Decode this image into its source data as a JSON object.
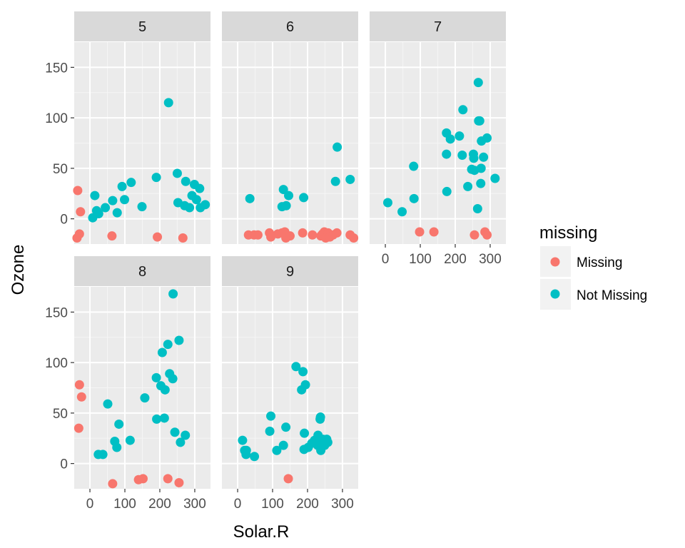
{
  "chart_data": {
    "type": "scatter",
    "facet_variable": "Month",
    "facets": [
      {
        "label": "5",
        "points": [
          {
            "x": -35,
            "y": 28,
            "g": "Missing"
          },
          {
            "x": -27,
            "y": 7,
            "g": "Missing"
          },
          {
            "x": -30,
            "y": -15,
            "g": "Missing"
          },
          {
            "x": -37,
            "y": -19,
            "g": "Missing"
          },
          {
            "x": 63,
            "y": -17,
            "g": "Missing"
          },
          {
            "x": 193,
            "y": -18,
            "g": "Missing"
          },
          {
            "x": 266,
            "y": -19,
            "g": "Missing"
          },
          {
            "x": 8,
            "y": 1,
            "g": "Not Missing"
          },
          {
            "x": 14,
            "y": 23,
            "g": "Not Missing"
          },
          {
            "x": 19,
            "y": 8,
            "g": "Not Missing"
          },
          {
            "x": 25,
            "y": 5,
            "g": "Not Missing"
          },
          {
            "x": 44,
            "y": 11,
            "g": "Not Missing"
          },
          {
            "x": 65,
            "y": 18,
            "g": "Not Missing"
          },
          {
            "x": 78,
            "y": 6,
            "g": "Not Missing"
          },
          {
            "x": 92,
            "y": 32,
            "g": "Not Missing"
          },
          {
            "x": 99,
            "y": 19,
            "g": "Not Missing"
          },
          {
            "x": 118,
            "y": 36,
            "g": "Not Missing"
          },
          {
            "x": 149,
            "y": 12,
            "g": "Not Missing"
          },
          {
            "x": 190,
            "y": 41,
            "g": "Not Missing"
          },
          {
            "x": 225,
            "y": 115,
            "g": "Not Missing"
          },
          {
            "x": 250,
            "y": 45,
            "g": "Not Missing"
          },
          {
            "x": 252,
            "y": 16,
            "g": "Not Missing"
          },
          {
            "x": 274,
            "y": 37,
            "g": "Not Missing"
          },
          {
            "x": 271,
            "y": 13,
            "g": "Not Missing"
          },
          {
            "x": 285,
            "y": 11,
            "g": "Not Missing"
          },
          {
            "x": 292,
            "y": 23,
            "g": "Not Missing"
          },
          {
            "x": 299,
            "y": 34,
            "g": "Not Missing"
          },
          {
            "x": 305,
            "y": 19,
            "g": "Not Missing"
          },
          {
            "x": 314,
            "y": 30,
            "g": "Not Missing"
          },
          {
            "x": 316,
            "y": 11,
            "g": "Not Missing"
          },
          {
            "x": 330,
            "y": 14,
            "g": "Not Missing"
          }
        ]
      },
      {
        "label": "6",
        "points": [
          {
            "x": 31,
            "y": -16,
            "g": "Missing"
          },
          {
            "x": 47,
            "y": -16,
            "g": "Missing"
          },
          {
            "x": 58,
            "y": -16,
            "g": "Missing"
          },
          {
            "x": 91,
            "y": -14,
            "g": "Missing"
          },
          {
            "x": 95,
            "y": -18,
            "g": "Missing"
          },
          {
            "x": 115,
            "y": -15,
            "g": "Missing"
          },
          {
            "x": 127,
            "y": -14,
            "g": "Missing"
          },
          {
            "x": 135,
            "y": -13,
            "g": "Missing"
          },
          {
            "x": 138,
            "y": -19,
            "g": "Missing"
          },
          {
            "x": 150,
            "y": -17,
            "g": "Missing"
          },
          {
            "x": 186,
            "y": -14,
            "g": "Missing"
          },
          {
            "x": 214,
            "y": -16,
            "g": "Missing"
          },
          {
            "x": 238,
            "y": -17,
            "g": "Missing"
          },
          {
            "x": 243,
            "y": -15,
            "g": "Missing"
          },
          {
            "x": 248,
            "y": -13,
            "g": "Missing"
          },
          {
            "x": 252,
            "y": -19,
            "g": "Missing"
          },
          {
            "x": 259,
            "y": -14,
            "g": "Missing"
          },
          {
            "x": 264,
            "y": -18,
            "g": "Missing"
          },
          {
            "x": 273,
            "y": -16,
            "g": "Missing"
          },
          {
            "x": 284,
            "y": -14,
            "g": "Missing"
          },
          {
            "x": 322,
            "y": -16,
            "g": "Missing"
          },
          {
            "x": 332,
            "y": -19,
            "g": "Missing"
          },
          {
            "x": 35,
            "y": 20,
            "g": "Not Missing"
          },
          {
            "x": 127,
            "y": 12,
            "g": "Not Missing"
          },
          {
            "x": 131,
            "y": 29,
            "g": "Not Missing"
          },
          {
            "x": 139,
            "y": 13,
            "g": "Not Missing"
          },
          {
            "x": 146,
            "y": 23,
            "g": "Not Missing"
          },
          {
            "x": 189,
            "y": 21,
            "g": "Not Missing"
          },
          {
            "x": 285,
            "y": 71,
            "g": "Not Missing"
          },
          {
            "x": 280,
            "y": 37,
            "g": "Not Missing"
          },
          {
            "x": 322,
            "y": 39,
            "g": "Not Missing"
          }
        ]
      },
      {
        "label": "7",
        "points": [
          {
            "x": 98,
            "y": -13,
            "g": "Missing"
          },
          {
            "x": 139,
            "y": -13,
            "g": "Missing"
          },
          {
            "x": 255,
            "y": -16,
            "g": "Missing"
          },
          {
            "x": 285,
            "y": -13,
            "g": "Missing"
          },
          {
            "x": 291,
            "y": -16,
            "g": "Missing"
          },
          {
            "x": 7,
            "y": 16,
            "g": "Not Missing"
          },
          {
            "x": 48,
            "y": 7,
            "g": "Not Missing"
          },
          {
            "x": 81,
            "y": 52,
            "g": "Not Missing"
          },
          {
            "x": 82,
            "y": 20,
            "g": "Not Missing"
          },
          {
            "x": 175,
            "y": 85,
            "g": "Not Missing"
          },
          {
            "x": 175,
            "y": 64,
            "g": "Not Missing"
          },
          {
            "x": 176,
            "y": 27,
            "g": "Not Missing"
          },
          {
            "x": 186,
            "y": 79,
            "g": "Not Missing"
          },
          {
            "x": 212,
            "y": 82,
            "g": "Not Missing"
          },
          {
            "x": 222,
            "y": 108,
            "g": "Not Missing"
          },
          {
            "x": 220,
            "y": 63,
            "g": "Not Missing"
          },
          {
            "x": 236,
            "y": 32,
            "g": "Not Missing"
          },
          {
            "x": 247,
            "y": 49,
            "g": "Not Missing"
          },
          {
            "x": 252,
            "y": 64,
            "g": "Not Missing"
          },
          {
            "x": 253,
            "y": 60,
            "g": "Not Missing"
          },
          {
            "x": 255,
            "y": 48,
            "g": "Not Missing"
          },
          {
            "x": 264,
            "y": 10,
            "g": "Not Missing"
          },
          {
            "x": 266,
            "y": 135,
            "g": "Not Missing"
          },
          {
            "x": 267,
            "y": 97,
            "g": "Not Missing"
          },
          {
            "x": 270,
            "y": 97,
            "g": "Not Missing"
          },
          {
            "x": 273,
            "y": 35,
            "g": "Not Missing"
          },
          {
            "x": 274,
            "y": 50,
            "g": "Not Missing"
          },
          {
            "x": 275,
            "y": 77,
            "g": "Not Missing"
          },
          {
            "x": 281,
            "y": 61,
            "g": "Not Missing"
          },
          {
            "x": 291,
            "y": 80,
            "g": "Not Missing"
          },
          {
            "x": 314,
            "y": 40,
            "g": "Not Missing"
          }
        ]
      },
      {
        "label": "8",
        "points": [
          {
            "x": -30,
            "y": 78,
            "g": "Missing"
          },
          {
            "x": -24,
            "y": 66,
            "g": "Missing"
          },
          {
            "x": -32,
            "y": 35,
            "g": "Missing"
          },
          {
            "x": 65,
            "y": -20,
            "g": "Missing"
          },
          {
            "x": 139,
            "y": -16,
            "g": "Missing"
          },
          {
            "x": 152,
            "y": -15,
            "g": "Missing"
          },
          {
            "x": 223,
            "y": -15,
            "g": "Missing"
          },
          {
            "x": 255,
            "y": -19,
            "g": "Missing"
          },
          {
            "x": 24,
            "y": 9,
            "g": "Not Missing"
          },
          {
            "x": 37,
            "y": 9,
            "g": "Not Missing"
          },
          {
            "x": 51,
            "y": 59,
            "g": "Not Missing"
          },
          {
            "x": 71,
            "y": 22,
            "g": "Not Missing"
          },
          {
            "x": 77,
            "y": 16,
            "g": "Not Missing"
          },
          {
            "x": 83,
            "y": 39,
            "g": "Not Missing"
          },
          {
            "x": 115,
            "y": 23,
            "g": "Not Missing"
          },
          {
            "x": 157,
            "y": 65,
            "g": "Not Missing"
          },
          {
            "x": 190,
            "y": 85,
            "g": "Not Missing"
          },
          {
            "x": 191,
            "y": 44,
            "g": "Not Missing"
          },
          {
            "x": 203,
            "y": 77,
            "g": "Not Missing"
          },
          {
            "x": 207,
            "y": 110,
            "g": "Not Missing"
          },
          {
            "x": 215,
            "y": 73,
            "g": "Not Missing"
          },
          {
            "x": 213,
            "y": 45,
            "g": "Not Missing"
          },
          {
            "x": 223,
            "y": 118,
            "g": "Not Missing"
          },
          {
            "x": 228,
            "y": 89,
            "g": "Not Missing"
          },
          {
            "x": 237,
            "y": 84,
            "g": "Not Missing"
          },
          {
            "x": 238,
            "y": 168,
            "g": "Not Missing"
          },
          {
            "x": 243,
            "y": 31,
            "g": "Not Missing"
          },
          {
            "x": 255,
            "y": 122,
            "g": "Not Missing"
          },
          {
            "x": 259,
            "y": 21,
            "g": "Not Missing"
          },
          {
            "x": 273,
            "y": 28,
            "g": "Not Missing"
          }
        ]
      },
      {
        "label": "9",
        "points": [
          {
            "x": 145,
            "y": -15,
            "g": "Missing"
          },
          {
            "x": 14,
            "y": 23,
            "g": "Not Missing"
          },
          {
            "x": 20,
            "y": 13,
            "g": "Not Missing"
          },
          {
            "x": 24,
            "y": 9,
            "g": "Not Missing"
          },
          {
            "x": 25,
            "y": 13,
            "g": "Not Missing"
          },
          {
            "x": 48,
            "y": 7,
            "g": "Not Missing"
          },
          {
            "x": 92,
            "y": 32,
            "g": "Not Missing"
          },
          {
            "x": 95,
            "y": 47,
            "g": "Not Missing"
          },
          {
            "x": 112,
            "y": 13,
            "g": "Not Missing"
          },
          {
            "x": 131,
            "y": 18,
            "g": "Not Missing"
          },
          {
            "x": 138,
            "y": 36,
            "g": "Not Missing"
          },
          {
            "x": 167,
            "y": 96,
            "g": "Not Missing"
          },
          {
            "x": 183,
            "y": 73,
            "g": "Not Missing"
          },
          {
            "x": 187,
            "y": 91,
            "g": "Not Missing"
          },
          {
            "x": 191,
            "y": 30,
            "g": "Not Missing"
          },
          {
            "x": 194,
            "y": 78,
            "g": "Not Missing"
          },
          {
            "x": 190,
            "y": 14,
            "g": "Not Missing"
          },
          {
            "x": 202,
            "y": 16,
            "g": "Not Missing"
          },
          {
            "x": 212,
            "y": 20,
            "g": "Not Missing"
          },
          {
            "x": 220,
            "y": 23,
            "g": "Not Missing"
          },
          {
            "x": 229,
            "y": 18,
            "g": "Not Missing"
          },
          {
            "x": 230,
            "y": 28,
            "g": "Not Missing"
          },
          {
            "x": 236,
            "y": 44,
            "g": "Not Missing"
          },
          {
            "x": 237,
            "y": 46,
            "g": "Not Missing"
          },
          {
            "x": 238,
            "y": 13,
            "g": "Not Missing"
          },
          {
            "x": 240,
            "y": 21,
            "g": "Not Missing"
          },
          {
            "x": 244,
            "y": 24,
            "g": "Not Missing"
          },
          {
            "x": 249,
            "y": 18,
            "g": "Not Missing"
          },
          {
            "x": 255,
            "y": 24,
            "g": "Not Missing"
          },
          {
            "x": 258,
            "y": 21,
            "g": "Not Missing"
          }
        ]
      }
    ],
    "xlabel": "Solar.R",
    "ylabel": "Ozone",
    "xlim": [
      -45,
      345
    ],
    "ylim": [
      -25,
      175
    ],
    "x_ticks": [
      0,
      100,
      200,
      300
    ],
    "y_ticks": [
      0,
      50,
      100,
      150
    ],
    "grid": true,
    "legend": {
      "title": "missing",
      "position": "right",
      "entries": [
        {
          "label": "Missing",
          "color": "#F8766D"
        },
        {
          "label": "Not Missing",
          "color": "#00BFC4"
        }
      ]
    }
  },
  "colors": {
    "panel_background": "#EBEBEB",
    "strip_background": "#D9D9D9",
    "grid_major": "#FFFFFF",
    "missing": "#F8766D",
    "not_missing": "#00BFC4"
  }
}
